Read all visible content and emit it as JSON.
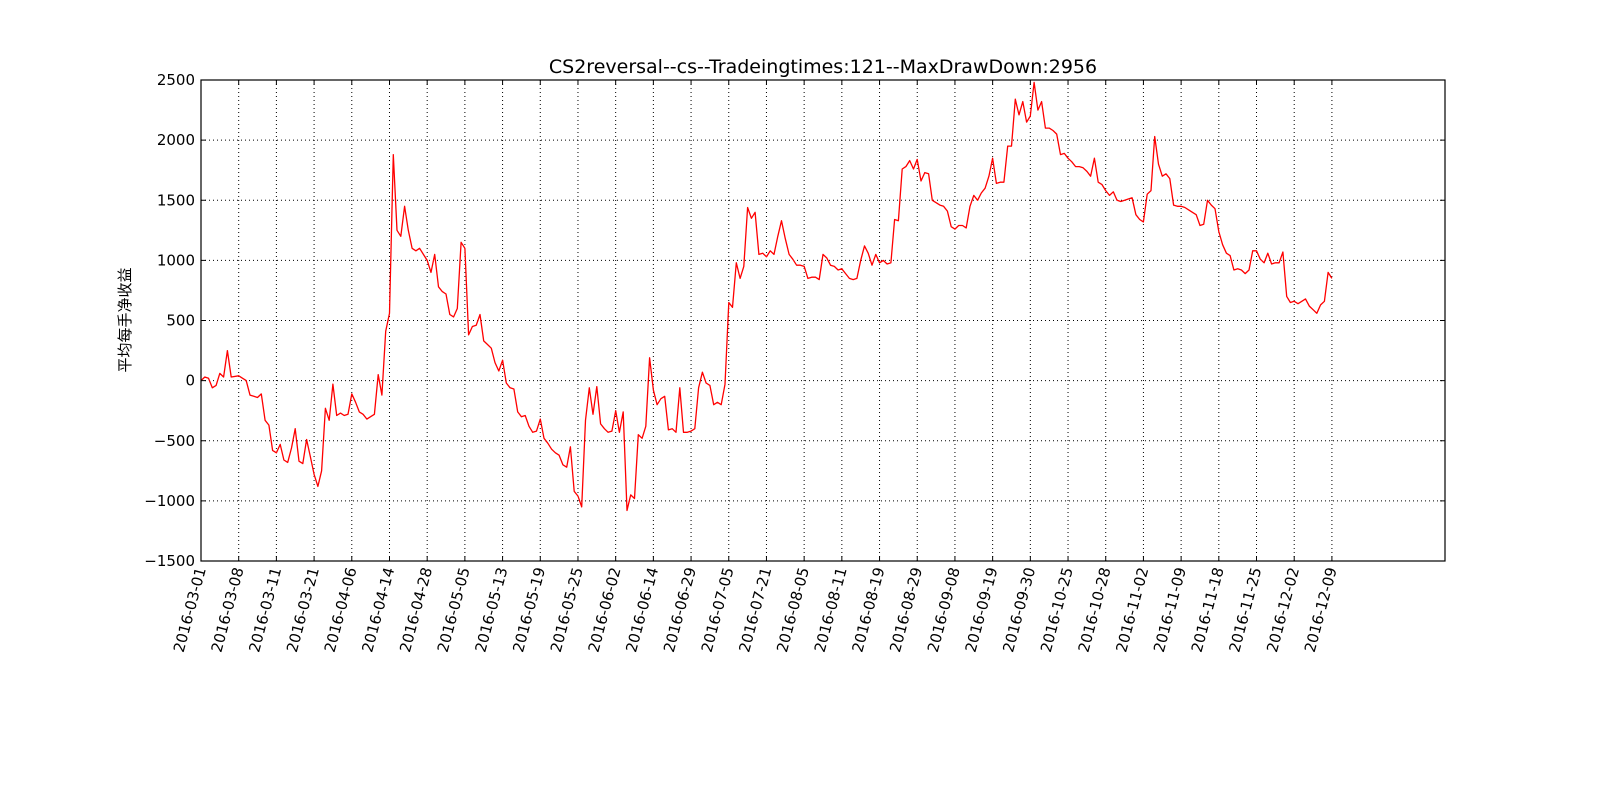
{
  "chart_data": {
    "type": "line",
    "title": "CS2reversal--cs--Tradeingtimes:121--MaxDrawDown:2956",
    "xlabel": "",
    "ylabel": "平均每手净收益",
    "ylim": [
      -1500,
      2500
    ],
    "yticks": [
      -1500,
      -1000,
      -500,
      0,
      500,
      1000,
      1500,
      2000,
      2500
    ],
    "ytick_labels": [
      "−1500",
      "−1000",
      "−500",
      "0",
      "500",
      "1000",
      "1500",
      "2000",
      "2500"
    ],
    "x_index_range": [
      0,
      165
    ],
    "xtick_positions": [
      0,
      5,
      10,
      15,
      20,
      25,
      30,
      35,
      40,
      45,
      50,
      55,
      60,
      65,
      70,
      75,
      80,
      85,
      90,
      95,
      100,
      105,
      110,
      115,
      120,
      125,
      130,
      135,
      140,
      145,
      150
    ],
    "xtick_labels": [
      "2016-03-01",
      "2016-03-08",
      "2016-03-11",
      "2016-03-21",
      "2016-04-06",
      "2016-04-14",
      "2016-04-28",
      "2016-05-05",
      "2016-05-13",
      "2016-05-19",
      "2016-05-25",
      "2016-06-02",
      "2016-06-14",
      "2016-06-29",
      "2016-07-05",
      "2016-07-21",
      "2016-08-05",
      "2016-08-11",
      "2016-08-19",
      "2016-08-29",
      "2016-09-08",
      "2016-09-19",
      "2016-09-30",
      "2016-10-25",
      "2016-10-28",
      "2016-11-02",
      "2016-11-09",
      "2016-11-18",
      "2016-11-25",
      "2016-12-02",
      "2016-12-09"
    ],
    "grid": true,
    "series": [
      {
        "color": "#ff0000",
        "points": [
          [
            0,
            0
          ],
          [
            0.5,
            30
          ],
          [
            1,
            20
          ],
          [
            1.5,
            -60
          ],
          [
            2,
            -40
          ],
          [
            2.5,
            60
          ],
          [
            3,
            30
          ],
          [
            3.5,
            250
          ],
          [
            4,
            30
          ],
          [
            5,
            40
          ],
          [
            6,
            0
          ],
          [
            6.5,
            -120
          ],
          [
            7,
            -130
          ],
          [
            7.5,
            -140
          ],
          [
            8,
            -110
          ],
          [
            8.5,
            -330
          ],
          [
            9,
            -370
          ],
          [
            9.5,
            -580
          ],
          [
            10,
            -600
          ],
          [
            10.5,
            -530
          ],
          [
            11,
            -660
          ],
          [
            11.5,
            -680
          ],
          [
            12,
            -560
          ],
          [
            12.5,
            -400
          ],
          [
            13,
            -670
          ],
          [
            13.5,
            -690
          ],
          [
            14,
            -490
          ],
          [
            14.5,
            -630
          ],
          [
            15,
            -780
          ],
          [
            15.5,
            -880
          ],
          [
            16,
            -750
          ],
          [
            16.5,
            -230
          ],
          [
            17,
            -330
          ],
          [
            17.5,
            -30
          ],
          [
            18,
            -290
          ],
          [
            18.5,
            -270
          ],
          [
            19,
            -290
          ],
          [
            19.5,
            -280
          ],
          [
            20,
            -110
          ],
          [
            20.5,
            -180
          ],
          [
            21,
            -260
          ],
          [
            21.5,
            -280
          ],
          [
            22,
            -320
          ],
          [
            22.5,
            -300
          ],
          [
            23,
            -280
          ],
          [
            23.5,
            50
          ],
          [
            24,
            -120
          ],
          [
            24.5,
            410
          ],
          [
            25,
            560
          ],
          [
            25.5,
            1880
          ],
          [
            26,
            1250
          ],
          [
            26.5,
            1200
          ],
          [
            27,
            1450
          ],
          [
            27.5,
            1250
          ],
          [
            28,
            1100
          ],
          [
            28.5,
            1080
          ],
          [
            29,
            1100
          ],
          [
            29.5,
            1050
          ],
          [
            30,
            1000
          ],
          [
            30.5,
            900
          ],
          [
            31,
            1050
          ],
          [
            31.5,
            780
          ],
          [
            32,
            740
          ],
          [
            32.5,
            720
          ],
          [
            33,
            550
          ],
          [
            33.5,
            530
          ],
          [
            34,
            600
          ],
          [
            34.5,
            1150
          ],
          [
            35,
            1100
          ],
          [
            35.5,
            380
          ],
          [
            36,
            450
          ],
          [
            36.5,
            460
          ],
          [
            37,
            550
          ],
          [
            37.5,
            330
          ],
          [
            38,
            300
          ],
          [
            38.5,
            270
          ],
          [
            39,
            150
          ],
          [
            39.5,
            80
          ],
          [
            40,
            170
          ],
          [
            40.5,
            -20
          ],
          [
            41,
            -60
          ],
          [
            41.5,
            -70
          ],
          [
            42,
            -260
          ],
          [
            42.5,
            -300
          ],
          [
            43,
            -290
          ],
          [
            43.5,
            -380
          ],
          [
            44,
            -430
          ],
          [
            44.5,
            -420
          ],
          [
            45,
            -320
          ],
          [
            45.5,
            -480
          ],
          [
            46,
            -520
          ],
          [
            46.5,
            -570
          ],
          [
            47,
            -600
          ],
          [
            47.5,
            -620
          ],
          [
            48,
            -700
          ],
          [
            48.5,
            -720
          ],
          [
            49,
            -550
          ],
          [
            49.5,
            -920
          ],
          [
            50,
            -960
          ],
          [
            50.5,
            -1050
          ],
          [
            51,
            -330
          ],
          [
            51.5,
            -60
          ],
          [
            52,
            -280
          ],
          [
            52.5,
            -50
          ],
          [
            53,
            -360
          ],
          [
            53.5,
            -400
          ],
          [
            54,
            -430
          ],
          [
            54.5,
            -420
          ],
          [
            55,
            -250
          ],
          [
            55.5,
            -430
          ],
          [
            56,
            -260
          ],
          [
            56.5,
            -1080
          ],
          [
            57,
            -950
          ],
          [
            57.5,
            -980
          ],
          [
            58,
            -450
          ],
          [
            58.5,
            -480
          ],
          [
            59,
            -380
          ],
          [
            59.5,
            190
          ],
          [
            60,
            -80
          ],
          [
            60.5,
            -200
          ],
          [
            61,
            -150
          ],
          [
            61.5,
            -130
          ],
          [
            62,
            -410
          ],
          [
            62.5,
            -400
          ],
          [
            63,
            -430
          ],
          [
            63.5,
            -60
          ],
          [
            64,
            -430
          ],
          [
            64.5,
            -430
          ],
          [
            65,
            -420
          ],
          [
            65.5,
            -400
          ],
          [
            66,
            -60
          ],
          [
            66.5,
            70
          ],
          [
            67,
            -20
          ],
          [
            67.5,
            -40
          ],
          [
            68,
            -200
          ],
          [
            68.5,
            -180
          ],
          [
            69,
            -200
          ],
          [
            69.5,
            -30
          ],
          [
            70,
            650
          ],
          [
            70.5,
            610
          ],
          [
            71,
            980
          ],
          [
            71.5,
            850
          ],
          [
            72,
            950
          ],
          [
            72.5,
            1440
          ],
          [
            73,
            1350
          ],
          [
            73.5,
            1400
          ],
          [
            74,
            1050
          ],
          [
            74.5,
            1060
          ],
          [
            75,
            1030
          ],
          [
            75.5,
            1080
          ],
          [
            76,
            1050
          ],
          [
            76.5,
            1200
          ],
          [
            77,
            1330
          ],
          [
            77.5,
            1180
          ],
          [
            78,
            1050
          ],
          [
            78.5,
            1010
          ],
          [
            79,
            960
          ],
          [
            79.5,
            960
          ],
          [
            80,
            950
          ],
          [
            80.5,
            850
          ],
          [
            81,
            860
          ],
          [
            81.5,
            860
          ],
          [
            82,
            840
          ],
          [
            82.5,
            1050
          ],
          [
            83,
            1020
          ],
          [
            83.5,
            960
          ],
          [
            84,
            950
          ],
          [
            84.5,
            920
          ],
          [
            85,
            930
          ],
          [
            85.5,
            890
          ],
          [
            86,
            850
          ],
          [
            86.5,
            840
          ],
          [
            87,
            850
          ],
          [
            87.5,
            1000
          ],
          [
            88,
            1120
          ],
          [
            88.5,
            1060
          ],
          [
            89,
            960
          ],
          [
            89.5,
            1050
          ],
          [
            90,
            980
          ],
          [
            90.5,
            1000
          ],
          [
            91,
            970
          ],
          [
            91.5,
            980
          ],
          [
            92,
            1340
          ],
          [
            92.5,
            1330
          ],
          [
            93,
            1760
          ],
          [
            93.5,
            1780
          ],
          [
            94,
            1830
          ],
          [
            94.5,
            1760
          ],
          [
            95,
            1840
          ],
          [
            95.5,
            1660
          ],
          [
            96,
            1730
          ],
          [
            96.5,
            1720
          ],
          [
            97,
            1500
          ],
          [
            97.5,
            1480
          ],
          [
            98,
            1460
          ],
          [
            98.5,
            1450
          ],
          [
            99,
            1410
          ],
          [
            99.5,
            1280
          ],
          [
            100,
            1260
          ],
          [
            100.5,
            1290
          ],
          [
            101,
            1290
          ],
          [
            101.5,
            1270
          ],
          [
            102,
            1450
          ],
          [
            102.5,
            1540
          ],
          [
            103,
            1500
          ],
          [
            103.5,
            1560
          ],
          [
            104,
            1600
          ],
          [
            104.5,
            1700
          ],
          [
            105,
            1850
          ],
          [
            105.5,
            1640
          ],
          [
            106,
            1650
          ],
          [
            106.5,
            1650
          ],
          [
            107,
            1950
          ],
          [
            107.5,
            1950
          ],
          [
            108,
            2340
          ],
          [
            108.5,
            2210
          ],
          [
            109,
            2320
          ],
          [
            109.5,
            2150
          ],
          [
            110,
            2200
          ],
          [
            110.5,
            2480
          ],
          [
            111,
            2250
          ],
          [
            111.5,
            2320
          ],
          [
            112,
            2100
          ],
          [
            112.5,
            2100
          ],
          [
            113,
            2080
          ],
          [
            113.5,
            2050
          ],
          [
            114,
            1880
          ],
          [
            114.5,
            1890
          ],
          [
            115,
            1850
          ],
          [
            115.5,
            1820
          ],
          [
            116,
            1780
          ],
          [
            116.5,
            1780
          ],
          [
            117,
            1770
          ],
          [
            117.5,
            1740
          ],
          [
            118,
            1700
          ],
          [
            118.5,
            1850
          ],
          [
            119,
            1650
          ],
          [
            119.5,
            1630
          ],
          [
            120,
            1580
          ],
          [
            120.5,
            1540
          ],
          [
            121,
            1570
          ],
          [
            121.5,
            1500
          ],
          [
            122,
            1490
          ],
          [
            122.5,
            1500
          ],
          [
            123,
            1510
          ],
          [
            123.5,
            1520
          ],
          [
            124,
            1380
          ],
          [
            124.5,
            1340
          ],
          [
            125,
            1320
          ],
          [
            125.5,
            1550
          ],
          [
            126,
            1580
          ],
          [
            126.5,
            2030
          ],
          [
            127,
            1800
          ],
          [
            127.5,
            1700
          ],
          [
            128,
            1720
          ],
          [
            128.5,
            1680
          ],
          [
            129,
            1460
          ],
          [
            129.5,
            1450
          ],
          [
            130,
            1450
          ],
          [
            130.5,
            1440
          ],
          [
            131,
            1420
          ],
          [
            131.5,
            1400
          ],
          [
            132,
            1380
          ],
          [
            132.5,
            1290
          ],
          [
            133,
            1300
          ],
          [
            133.5,
            1500
          ],
          [
            134,
            1460
          ],
          [
            134.5,
            1430
          ],
          [
            135,
            1240
          ],
          [
            135.5,
            1130
          ],
          [
            136,
            1060
          ],
          [
            136.5,
            1040
          ],
          [
            137,
            920
          ],
          [
            137.5,
            930
          ],
          [
            138,
            920
          ],
          [
            138.5,
            890
          ],
          [
            139,
            920
          ],
          [
            139.5,
            1080
          ],
          [
            140,
            1080
          ],
          [
            140.5,
            1010
          ],
          [
            141,
            980
          ],
          [
            141.5,
            1060
          ],
          [
            142,
            970
          ],
          [
            142.5,
            980
          ],
          [
            143,
            980
          ],
          [
            143.5,
            1070
          ],
          [
            144,
            700
          ],
          [
            144.5,
            650
          ],
          [
            145,
            660
          ],
          [
            145.5,
            640
          ],
          [
            146,
            660
          ],
          [
            146.5,
            680
          ],
          [
            147,
            620
          ],
          [
            147.5,
            590
          ],
          [
            148,
            560
          ],
          [
            148.5,
            630
          ],
          [
            149,
            660
          ],
          [
            149.5,
            900
          ],
          [
            150,
            850
          ]
        ]
      }
    ]
  }
}
